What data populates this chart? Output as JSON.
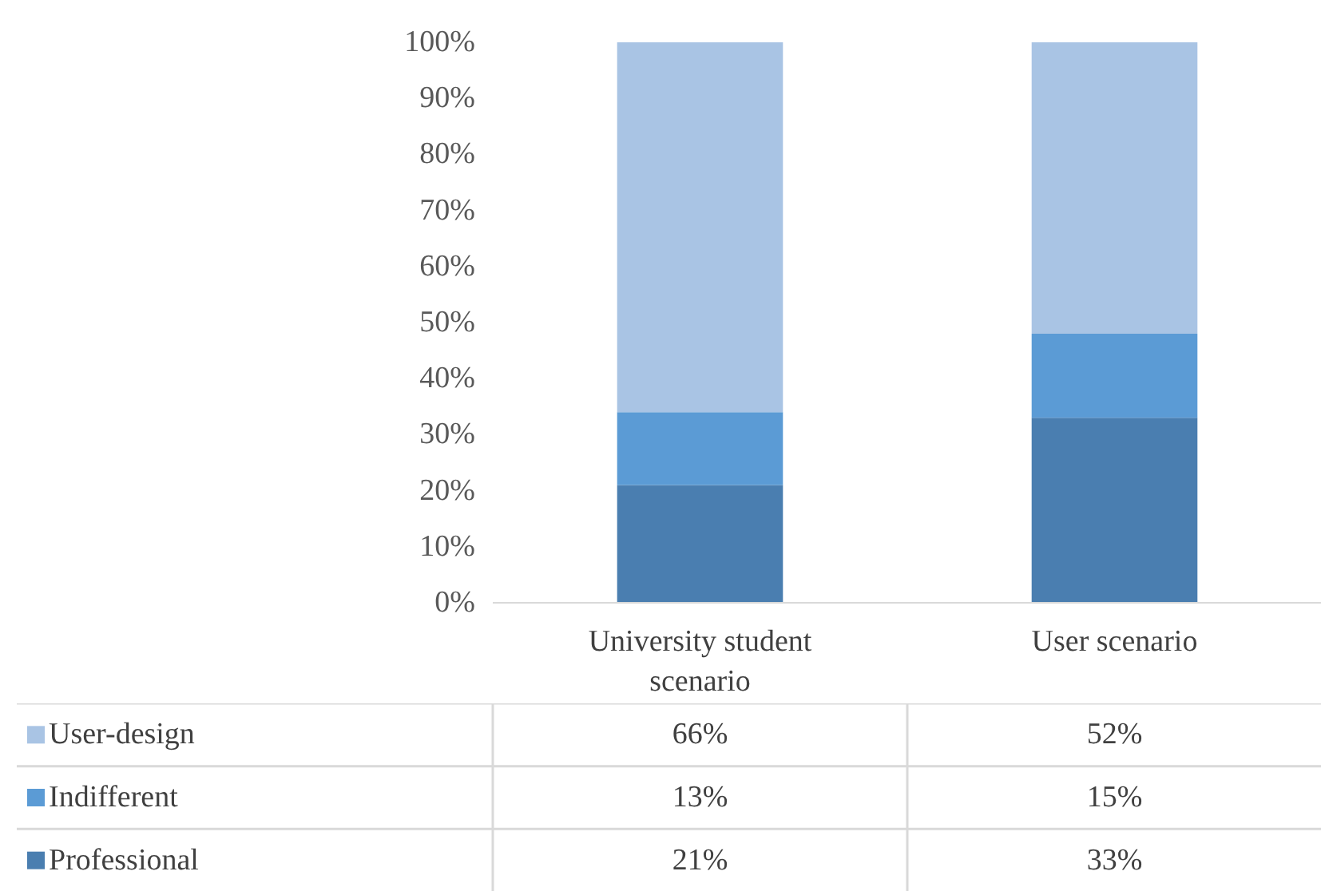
{
  "chart_data": {
    "type": "bar",
    "stacked": true,
    "categories": [
      "University student scenario",
      "User scenario"
    ],
    "series": [
      {
        "name": "Professional",
        "color": "#4a7eb0",
        "values": [
          21,
          33
        ],
        "value_labels": [
          "21%",
          "33%"
        ]
      },
      {
        "name": "Indifferent",
        "color": "#5b9bd5",
        "values": [
          13,
          15
        ],
        "value_labels": [
          "13%",
          "15%"
        ]
      },
      {
        "name": "User-design",
        "color": "#a9c4e4",
        "values": [
          66,
          52
        ],
        "value_labels": [
          "66%",
          "52%"
        ]
      }
    ],
    "ylim": [
      0,
      100
    ],
    "yticks": [
      {
        "value": 0,
        "label": "0%"
      },
      {
        "value": 10,
        "label": "10%"
      },
      {
        "value": 20,
        "label": "20%"
      },
      {
        "value": 30,
        "label": "30%"
      },
      {
        "value": 40,
        "label": "40%"
      },
      {
        "value": 50,
        "label": "50%"
      },
      {
        "value": 60,
        "label": "60%"
      },
      {
        "value": 70,
        "label": "70%"
      },
      {
        "value": 80,
        "label": "80%"
      },
      {
        "value": 90,
        "label": "90%"
      },
      {
        "value": 100,
        "label": "100%"
      }
    ],
    "legend": "bottom",
    "grid": false
  }
}
